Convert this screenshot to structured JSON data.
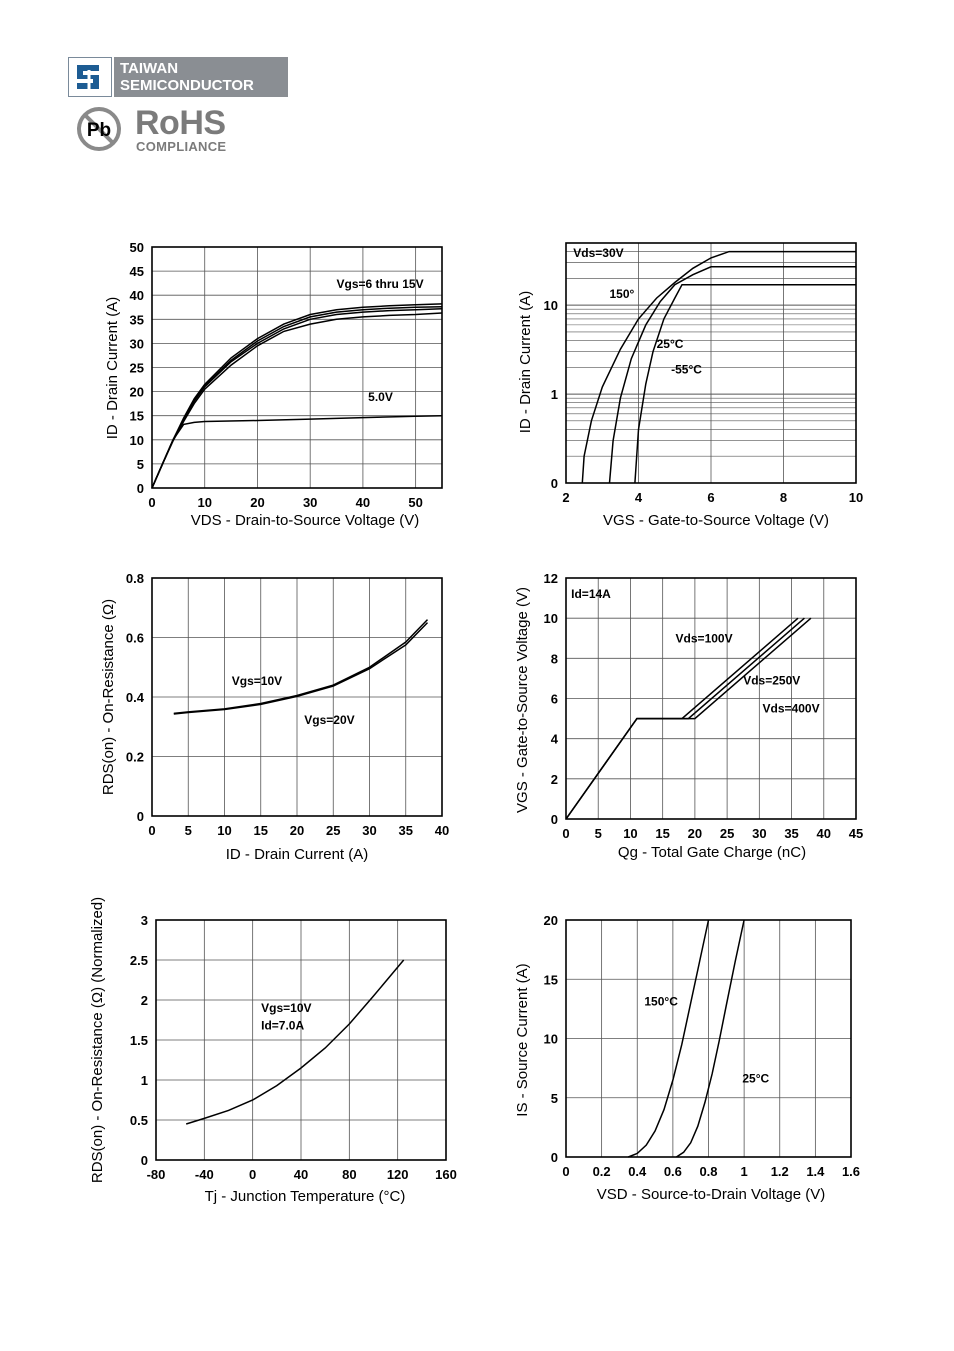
{
  "header": {
    "brand_line1": "TAIWAN",
    "brand_line2": "SEMICONDUCTOR",
    "rohs_title": "RoHS",
    "rohs_sub": "COMPLIANCE",
    "pb_label": "Pb"
  },
  "chart_data": [
    {
      "type": "line",
      "xlabel": "VDS - Drain-to-Source Voltage (V)",
      "ylabel": "ID - Drain Current (A)",
      "xlim": [
        0,
        55
      ],
      "ylim": [
        0,
        50
      ],
      "xticks": [
        0,
        10,
        20,
        30,
        40,
        50
      ],
      "yticks": [
        0,
        5,
        10,
        15,
        20,
        25,
        30,
        35,
        40,
        45,
        50
      ],
      "grid": true,
      "annotations": [
        {
          "text": "Vgs=6 thru 15V",
          "x": 35,
          "y": 41.5
        },
        {
          "text": "5.0V",
          "x": 41,
          "y": 18
        }
      ],
      "series": [
        {
          "name": "Vgs=6 thru 15V",
          "x": [
            0,
            2,
            4,
            6,
            8,
            10,
            15,
            20,
            25,
            30,
            35,
            40,
            45,
            50,
            55
          ],
          "y": [
            0,
            5,
            10,
            14.5,
            18.5,
            21.5,
            27,
            31,
            34,
            36,
            37,
            37.5,
            37.8,
            38,
            38.2
          ]
        },
        {
          "name": "",
          "x": [
            0,
            2,
            4,
            6,
            8,
            10,
            15,
            20,
            25,
            30,
            35,
            40,
            45,
            50,
            55
          ],
          "y": [
            0,
            5,
            10,
            14.3,
            18.2,
            21.2,
            26.5,
            30.5,
            33.5,
            35.5,
            36.5,
            37,
            37.3,
            37.5,
            37.6
          ]
        },
        {
          "name": "",
          "x": [
            0,
            2,
            4,
            6,
            8,
            10,
            15,
            20,
            25,
            30,
            35,
            40,
            45,
            50,
            55
          ],
          "y": [
            0,
            5,
            10,
            14,
            18,
            21,
            26.2,
            30,
            33,
            35,
            36,
            36.5,
            36.8,
            37,
            37.2
          ]
        },
        {
          "name": "",
          "x": [
            0,
            2,
            4,
            6,
            8,
            10,
            15,
            20,
            25,
            30,
            35,
            40,
            45,
            50,
            55
          ],
          "y": [
            0,
            5,
            9.8,
            13.8,
            17.5,
            20.5,
            25.5,
            29.5,
            32.5,
            34,
            35,
            35.5,
            35.8,
            36,
            36.3
          ]
        },
        {
          "name": "5.0V",
          "x": [
            0,
            2,
            4,
            6,
            8,
            10,
            20,
            30,
            40,
            50,
            55
          ],
          "y": [
            0,
            5,
            10,
            13.2,
            13.6,
            13.8,
            14,
            14.3,
            14.6,
            14.9,
            15
          ]
        }
      ]
    },
    {
      "type": "line",
      "xlabel": "VGS - Gate-to-Source Voltage (V)",
      "ylabel": "ID - Drain Current (A)",
      "xlim": [
        2,
        10
      ],
      "ylim": [
        0.1,
        50
      ],
      "yscale": "log",
      "xticks": [
        2,
        4,
        6,
        8,
        10
      ],
      "yticks": [
        {
          "label": "0",
          "value": 0.1
        },
        {
          "label": "1",
          "value": 1
        },
        {
          "label": "10",
          "value": 10
        }
      ],
      "grid": true,
      "annotations": [
        {
          "text": "Vds=30V",
          "x": 2.2,
          "y": 35
        },
        {
          "text": "150°",
          "x": 3.2,
          "y": 12
        },
        {
          "text": "25°C",
          "x": 4.5,
          "y": 3.3
        },
        {
          "text": "-55°C",
          "x": 4.9,
          "y": 1.7
        }
      ],
      "series": [
        {
          "name": "150°",
          "x": [
            2.45,
            2.5,
            2.7,
            3.0,
            3.5,
            4.0,
            4.5,
            5.0,
            5.5,
            6.0,
            6.5,
            10
          ],
          "y": [
            0.1,
            0.2,
            0.5,
            1.2,
            3.2,
            7,
            12,
            18,
            26,
            34,
            40,
            40
          ]
        },
        {
          "name": "25°C",
          "x": [
            3.2,
            3.3,
            3.5,
            3.8,
            4.2,
            4.6,
            5.0,
            5.5,
            6.0,
            10
          ],
          "y": [
            0.1,
            0.3,
            0.9,
            2.5,
            6,
            11,
            17,
            22,
            27,
            27
          ]
        },
        {
          "name": "-55°C",
          "x": [
            3.9,
            4.0,
            4.2,
            4.4,
            4.7,
            5.0,
            5.2,
            10
          ],
          "y": [
            0.1,
            0.4,
            1.3,
            3,
            7,
            12,
            17,
            17
          ]
        }
      ]
    },
    {
      "type": "line",
      "xlabel": "ID - Drain Current (A)",
      "ylabel": "RDS(on) - On-Resistance (Ω)",
      "xlim": [
        0,
        40
      ],
      "ylim": [
        0,
        0.8
      ],
      "xticks": [
        0,
        5,
        10,
        15,
        20,
        25,
        30,
        35,
        40
      ],
      "yticks": [
        0,
        0.2,
        0.4,
        0.6,
        0.8
      ],
      "grid": true,
      "annotations": [
        {
          "text": "Vgs=10V",
          "x": 11,
          "y": 0.44
        },
        {
          "text": "Vgs=20V",
          "x": 21,
          "y": 0.31
        }
      ],
      "series": [
        {
          "name": "Vgs=10V",
          "x": [
            3,
            5,
            10,
            15,
            20,
            25,
            30,
            35,
            38
          ],
          "y": [
            0.345,
            0.35,
            0.36,
            0.378,
            0.405,
            0.44,
            0.5,
            0.585,
            0.66
          ]
        },
        {
          "name": "Vgs=20V",
          "x": [
            3,
            5,
            10,
            15,
            20,
            25,
            30,
            35,
            38
          ],
          "y": [
            0.343,
            0.348,
            0.358,
            0.375,
            0.402,
            0.437,
            0.495,
            0.575,
            0.65
          ]
        }
      ]
    },
    {
      "type": "line",
      "xlabel": "Qg - Total Gate Charge (nC)",
      "ylabel": "VGS - Gate-to-Source Voltage (V)",
      "xlim": [
        0,
        45
      ],
      "ylim": [
        0,
        12
      ],
      "xticks": [
        0,
        5,
        10,
        15,
        20,
        25,
        30,
        35,
        40,
        45
      ],
      "yticks": [
        0,
        2,
        4,
        6,
        8,
        10,
        12
      ],
      "grid": true,
      "annotations": [
        {
          "text": "Id=14A",
          "x": 0.8,
          "y": 11
        },
        {
          "text": "Vds=100V",
          "x": 17,
          "y": 8.8
        },
        {
          "text": "Vds=250V",
          "x": 27.5,
          "y": 6.7
        },
        {
          "text": "Vds=400V",
          "x": 30.5,
          "y": 5.3
        }
      ],
      "series": [
        {
          "name": "Vds=100V",
          "x": [
            0,
            11,
            18,
            36
          ],
          "y": [
            0,
            5,
            5,
            10
          ]
        },
        {
          "name": "Vds=250V",
          "x": [
            0,
            11,
            19,
            37
          ],
          "y": [
            0,
            5,
            5,
            10
          ]
        },
        {
          "name": "Vds=400V",
          "x": [
            0,
            11,
            20,
            38
          ],
          "y": [
            0,
            5,
            5,
            10
          ]
        }
      ]
    },
    {
      "type": "line",
      "xlabel": "Tj - Junction Temperature (°C)",
      "ylabel": "RDS(on) - On-Resistance (Ω) (Normalized)",
      "xlim": [
        -80,
        160
      ],
      "ylim": [
        0,
        3.0
      ],
      "xticks": [
        -80,
        -40,
        0,
        40,
        80,
        120,
        160
      ],
      "yticks": [
        0,
        0.5,
        1.0,
        1.5,
        2.0,
        2.5,
        3.0
      ],
      "grid": true,
      "annotations": [
        {
          "text": "Vgs=10V",
          "x": 7,
          "y": 1.85
        },
        {
          "text": "Id=7.0A",
          "x": 7,
          "y": 1.63
        }
      ],
      "series": [
        {
          "name": "",
          "x": [
            -55,
            -40,
            -20,
            0,
            20,
            40,
            60,
            80,
            100,
            125
          ],
          "y": [
            0.45,
            0.52,
            0.62,
            0.75,
            0.93,
            1.15,
            1.4,
            1.7,
            2.05,
            2.5
          ]
        }
      ]
    },
    {
      "type": "line",
      "xlabel": "VSD - Source-to-Drain Voltage (V)",
      "ylabel": "IS - Source Current (A)",
      "xlim": [
        0,
        1.6
      ],
      "ylim": [
        0,
        20
      ],
      "xticks": [
        0,
        0.2,
        0.4,
        0.6,
        0.8,
        1.0,
        1.2,
        1.4,
        1.6
      ],
      "yticks": [
        0,
        5,
        10,
        15,
        20
      ],
      "grid": true,
      "annotations": [
        {
          "text": "150°C",
          "x": 0.44,
          "y": 12.8
        },
        {
          "text": "25°C",
          "x": 0.99,
          "y": 6.3
        }
      ],
      "series": [
        {
          "name": "150°C",
          "x": [
            0.35,
            0.4,
            0.45,
            0.5,
            0.55,
            0.6,
            0.65,
            0.7,
            0.75,
            0.8
          ],
          "y": [
            0,
            0.3,
            1,
            2.2,
            4,
            6.5,
            9.5,
            13,
            16.5,
            20
          ]
        },
        {
          "name": "25°C",
          "x": [
            0.62,
            0.66,
            0.7,
            0.74,
            0.78,
            0.82,
            0.86,
            0.9,
            0.95,
            1.0
          ],
          "y": [
            0,
            0.4,
            1.2,
            2.6,
            4.6,
            7,
            9.8,
            12.8,
            16.5,
            20
          ]
        }
      ]
    }
  ]
}
